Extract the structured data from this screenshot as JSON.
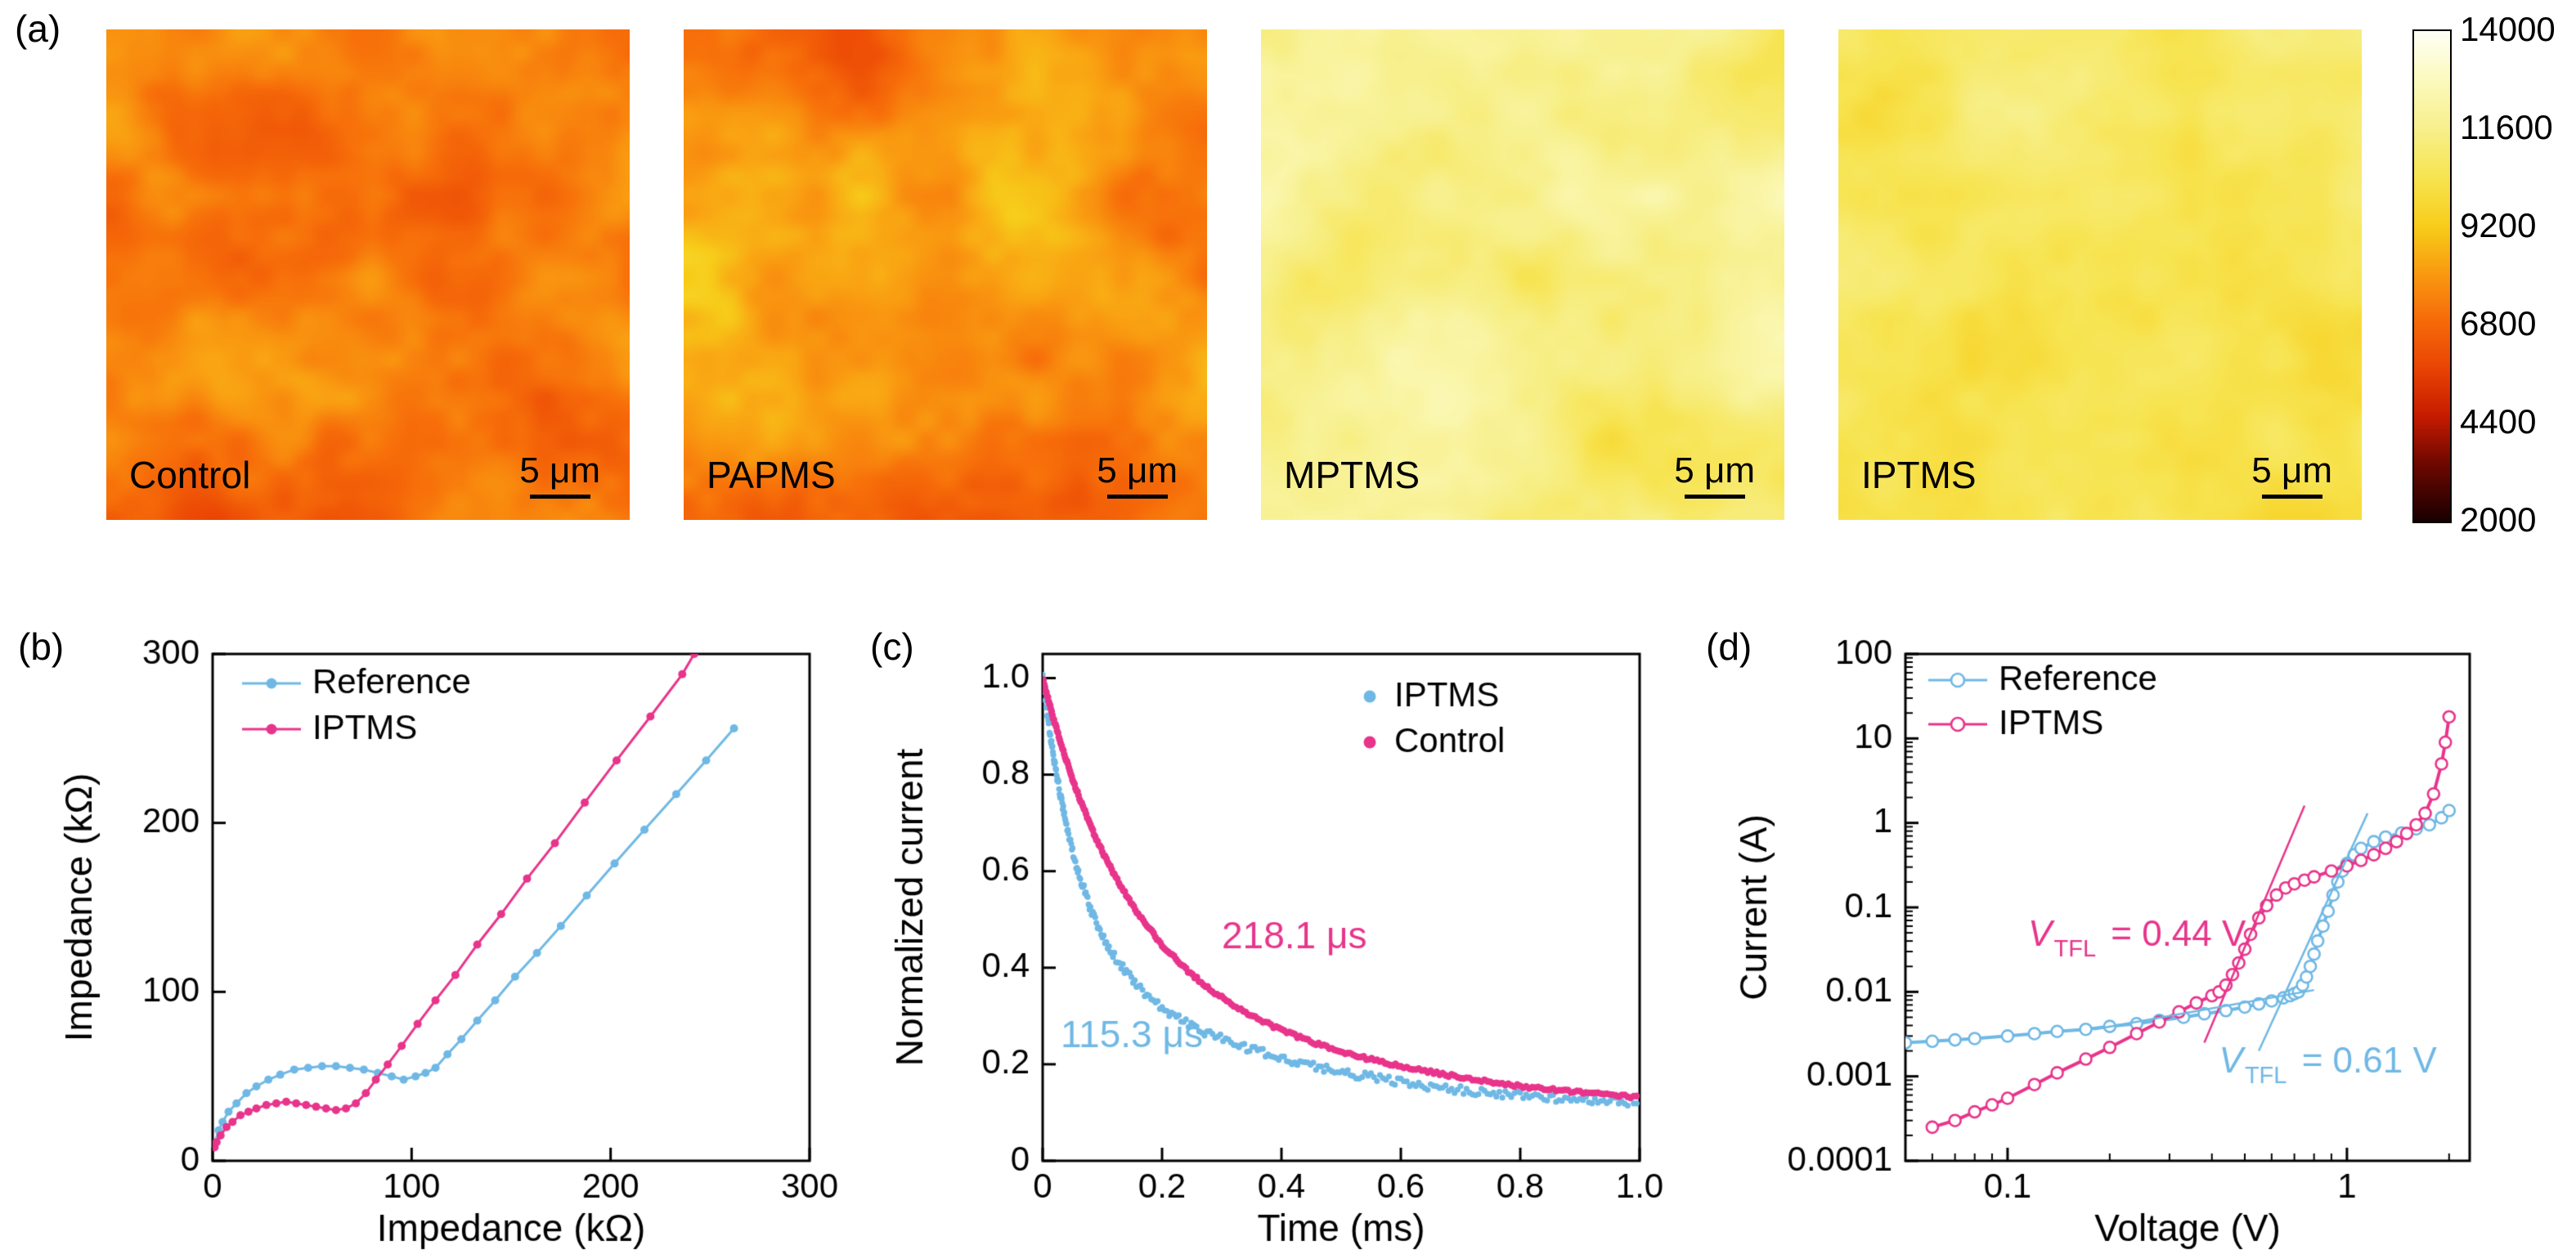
{
  "figure": {
    "panel_labels": {
      "a": "(a)",
      "b": "(b)",
      "c": "(c)",
      "d": "(d)"
    }
  },
  "colors": {
    "blue": "#6fb8e5",
    "pink": "#e8348b",
    "axis": "#000000"
  },
  "heatmaps": {
    "panels": [
      {
        "label": "Control",
        "scalebar": "5 μm",
        "appearance": {
          "seed": 11,
          "level": 7400,
          "spread": 5200
        }
      },
      {
        "label": "PAPMS",
        "scalebar": "5 μm",
        "appearance": {
          "seed": 77,
          "level": 7800,
          "spread": 5200
        }
      },
      {
        "label": "MPTMS",
        "scalebar": "5 μm",
        "appearance": {
          "seed": 33,
          "level": 11400,
          "spread": 4000
        }
      },
      {
        "label": "IPTMS",
        "scalebar": "5 μm",
        "appearance": {
          "seed": 55,
          "level": 10700,
          "spread": 3400
        }
      }
    ],
    "colorbar": {
      "vmin": 2000,
      "vmax": 14000,
      "ticks": [
        "14000",
        "11600",
        "9200",
        "6800",
        "4400",
        "2000"
      ]
    }
  },
  "chart_data": [
    {
      "id": "panel_b",
      "type": "line",
      "xlabel": "Impedance (kΩ)",
      "ylabel": "Impedance (kΩ)",
      "xlim": [
        0,
        300
      ],
      "ylim": [
        0,
        300
      ],
      "xticks": [
        0,
        100,
        200,
        300
      ],
      "yticks": [
        0,
        100,
        200,
        300
      ],
      "xtick_labels": [
        "0",
        "100",
        "200",
        "300"
      ],
      "ytick_labels": [
        "0",
        "100",
        "200",
        "300"
      ],
      "legend": {
        "position": "top-left"
      },
      "series": [
        {
          "name": "Reference",
          "color": "#6fb8e5",
          "x": [
            1,
            3,
            5,
            8,
            12,
            17,
            22,
            28,
            34,
            41,
            48,
            55,
            62,
            69,
            76,
            83,
            90,
            96,
            102,
            107,
            112,
            118,
            125,
            133,
            142,
            152,
            163,
            175,
            188,
            202,
            217,
            233,
            248,
            262
          ],
          "y": [
            10,
            18,
            23,
            29,
            34,
            40,
            44,
            48,
            51,
            54,
            55,
            56,
            56,
            55,
            54,
            52,
            50,
            48,
            50,
            52,
            55,
            63,
            72,
            83,
            95,
            109,
            123,
            139,
            157,
            176,
            196,
            217,
            237,
            256
          ]
        },
        {
          "name": "IPTMS",
          "color": "#e8348b",
          "x": [
            1,
            2,
            4,
            7,
            10,
            14,
            18,
            22,
            27,
            32,
            37,
            42,
            47,
            52,
            57,
            62,
            67,
            72,
            77,
            82,
            88,
            95,
            103,
            112,
            122,
            133,
            145,
            158,
            172,
            187,
            203,
            220,
            236,
            242
          ],
          "y": [
            8,
            11,
            15,
            20,
            23,
            27,
            29,
            31,
            33,
            34,
            35,
            34,
            33,
            32,
            31,
            30,
            31,
            34,
            40,
            48,
            57,
            68,
            81,
            95,
            110,
            128,
            146,
            167,
            188,
            212,
            237,
            263,
            288,
            300
          ]
        }
      ]
    },
    {
      "id": "panel_c",
      "type": "scatter",
      "xlabel": "Time (ms)",
      "ylabel": "Normalized current",
      "xlim": [
        0,
        1.0
      ],
      "ylim": [
        0,
        1.05
      ],
      "xticks": [
        0,
        0.2,
        0.4,
        0.6,
        0.8,
        1.0
      ],
      "yticks": [
        0,
        0.2,
        0.4,
        0.6,
        0.8,
        1.0
      ],
      "xtick_labels": [
        "0",
        "0.2",
        "0.4",
        "0.6",
        "0.8",
        "1.0"
      ],
      "ytick_labels": [
        "0",
        "0.2",
        "0.4",
        "0.6",
        "0.8",
        "1.0"
      ],
      "legend": {
        "position": "top-center"
      },
      "series": [
        {
          "name": "IPTMS",
          "color": "#6fb8e5",
          "time_constant": "115.3 μs",
          "x": [
            0,
            0.01,
            0.02,
            0.03,
            0.04,
            0.05,
            0.06,
            0.08,
            0.1,
            0.12,
            0.16,
            0.2,
            0.24,
            0.28,
            0.32,
            0.36,
            0.4,
            0.44,
            0.48,
            0.52,
            0.56,
            0.6,
            0.64,
            0.68,
            0.72,
            0.76,
            0.8,
            0.84,
            0.88,
            0.92,
            0.96,
            1.0
          ],
          "y": [
            1.0,
            0.906,
            0.825,
            0.755,
            0.694,
            0.642,
            0.597,
            0.523,
            0.467,
            0.423,
            0.36,
            0.317,
            0.286,
            0.262,
            0.243,
            0.227,
            0.212,
            0.2,
            0.189,
            0.179,
            0.171,
            0.163,
            0.156,
            0.15,
            0.145,
            0.14,
            0.136,
            0.132,
            0.128,
            0.125,
            0.123,
            0.12
          ]
        },
        {
          "name": "Control",
          "color": "#e8348b",
          "time_constant": "218.1 μs",
          "x": [
            0,
            0.01,
            0.02,
            0.03,
            0.05,
            0.06,
            0.08,
            0.1,
            0.12,
            0.16,
            0.2,
            0.24,
            0.28,
            0.32,
            0.36,
            0.4,
            0.44,
            0.48,
            0.52,
            0.56,
            0.6,
            0.64,
            0.68,
            0.72,
            0.76,
            0.8,
            0.84,
            0.88,
            0.92,
            0.96,
            1.0
          ],
          "y": [
            1.0,
            0.952,
            0.908,
            0.866,
            0.791,
            0.757,
            0.694,
            0.64,
            0.592,
            0.511,
            0.447,
            0.397,
            0.355,
            0.322,
            0.294,
            0.271,
            0.251,
            0.234,
            0.219,
            0.207,
            0.195,
            0.186,
            0.177,
            0.169,
            0.162,
            0.155,
            0.149,
            0.144,
            0.139,
            0.135,
            0.131
          ]
        }
      ],
      "annotations": [
        {
          "text": "218.1 μs",
          "color": "#e8348b",
          "x": 0.3,
          "y": 0.44
        },
        {
          "text": "115.3 μs",
          "color": "#6fb8e5",
          "x": 0.03,
          "y": 0.235
        }
      ]
    },
    {
      "id": "panel_d",
      "type": "line",
      "xscale": "log",
      "yscale": "log",
      "xlabel": "Voltage (V)",
      "ylabel": "Current (A)",
      "xlim": [
        0.05,
        2.3
      ],
      "ylim": [
        0.0001,
        100
      ],
      "xticks": [
        0.1,
        1
      ],
      "yticks": [
        100,
        10,
        1,
        0.1,
        0.01,
        0.001,
        0.0001
      ],
      "xtick_labels": [
        "0.1",
        "1"
      ],
      "ytick_labels": [
        "100",
        "10",
        "1",
        "0.1",
        "0.01",
        "0.001",
        "0.0001"
      ],
      "legend": {
        "position": "top-left"
      },
      "series": [
        {
          "name": "Reference",
          "color": "#6fb8e5",
          "x": [
            0.05,
            0.06,
            0.07,
            0.08,
            0.1,
            0.12,
            0.14,
            0.17,
            0.2,
            0.24,
            0.28,
            0.33,
            0.38,
            0.44,
            0.5,
            0.55,
            0.6,
            0.65,
            0.68,
            0.7,
            0.72,
            0.74,
            0.76,
            0.78,
            0.8,
            0.82,
            0.85,
            0.88,
            0.91,
            0.94,
            0.97,
            1.0,
            1.05,
            1.1,
            1.2,
            1.3,
            1.45,
            1.6,
            1.75,
            1.9,
            2.0
          ],
          "y": [
            0.0025,
            0.0026,
            0.0027,
            0.0028,
            0.003,
            0.0032,
            0.0034,
            0.0036,
            0.0039,
            0.0042,
            0.0046,
            0.005,
            0.0055,
            0.006,
            0.0066,
            0.0072,
            0.0078,
            0.0085,
            0.009,
            0.0095,
            0.01,
            0.012,
            0.015,
            0.02,
            0.028,
            0.04,
            0.06,
            0.09,
            0.14,
            0.2,
            0.27,
            0.33,
            0.42,
            0.5,
            0.6,
            0.68,
            0.76,
            0.85,
            0.95,
            1.15,
            1.4
          ]
        },
        {
          "name": "IPTMS",
          "color": "#e8348b",
          "x": [
            0.06,
            0.07,
            0.08,
            0.09,
            0.1,
            0.12,
            0.14,
            0.17,
            0.2,
            0.24,
            0.28,
            0.32,
            0.36,
            0.4,
            0.42,
            0.44,
            0.46,
            0.48,
            0.5,
            0.52,
            0.55,
            0.58,
            0.62,
            0.66,
            0.7,
            0.75,
            0.8,
            0.9,
            1.0,
            1.1,
            1.2,
            1.3,
            1.4,
            1.5,
            1.6,
            1.7,
            1.8,
            1.9,
            1.95,
            2.0
          ],
          "y": [
            0.00025,
            0.0003,
            0.00038,
            0.00046,
            0.00055,
            0.0008,
            0.0011,
            0.0016,
            0.0022,
            0.0032,
            0.0044,
            0.0058,
            0.0074,
            0.009,
            0.01,
            0.012,
            0.016,
            0.022,
            0.032,
            0.048,
            0.075,
            0.105,
            0.14,
            0.17,
            0.19,
            0.21,
            0.23,
            0.27,
            0.31,
            0.36,
            0.42,
            0.5,
            0.6,
            0.75,
            0.95,
            1.3,
            2.2,
            5.0,
            9.0,
            18
          ]
        }
      ],
      "fit_lines": [
        {
          "color": "#e8348b",
          "x1": 0.38,
          "y1": 0.0025,
          "x2": 0.75,
          "y2": 1.6
        },
        {
          "color": "#6fb8e5",
          "x1": 0.55,
          "y1": 0.002,
          "x2": 1.15,
          "y2": 1.3
        },
        {
          "color": "#6fb8e5",
          "x1": 0.18,
          "y1": 0.0036,
          "x2": 0.8,
          "y2": 0.0105
        }
      ],
      "annotations": [
        {
          "pre": "V",
          "sub": "TFL",
          "post": " = 0.44 V",
          "color": "#e8348b",
          "x": 0.115,
          "y": 0.035
        },
        {
          "pre": "V",
          "sub": "TFL",
          "post": " = 0.61 V",
          "color": "#6fb8e5",
          "x": 0.42,
          "y": 0.0011
        }
      ]
    }
  ]
}
